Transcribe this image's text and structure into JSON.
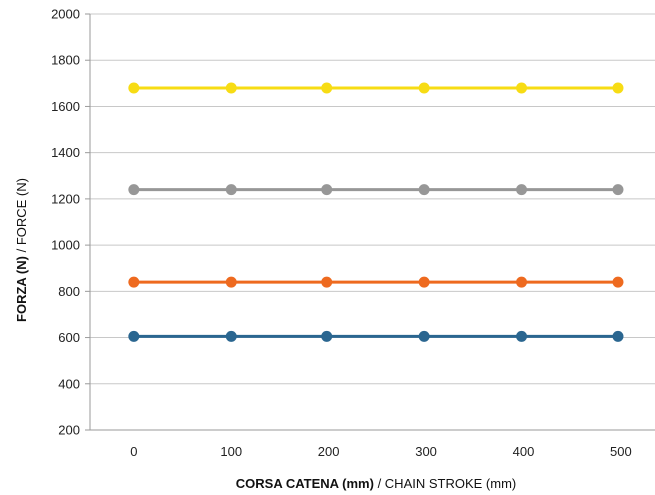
{
  "chart_data": {
    "type": "line",
    "xlabel_bold": "CORSA CATENA (mm)",
    "xlabel_rest": " / CHAIN STROKE (mm)",
    "ylabel_bold": "FORZA (N)",
    "ylabel_rest": "  /  FORCE (N)",
    "x_ticks": [
      0,
      100,
      200,
      300,
      400,
      500
    ],
    "y_ticks": [
      200,
      400,
      600,
      800,
      1000,
      1200,
      1400,
      1600,
      1800,
      2000
    ],
    "xlim": [
      -45,
      535
    ],
    "ylim": [
      200,
      2000
    ],
    "grid": true,
    "x": [
      0,
      100,
      198,
      298,
      398,
      497
    ],
    "series": [
      {
        "color": "#f7dc14",
        "values": [
          1680,
          1680,
          1680,
          1680,
          1680,
          1680
        ]
      },
      {
        "color": "#979797",
        "values": [
          1240,
          1240,
          1240,
          1240,
          1240,
          1240
        ]
      },
      {
        "color": "#ee6a1f",
        "values": [
          840,
          840,
          840,
          840,
          840,
          840
        ]
      },
      {
        "color": "#2a6690",
        "values": [
          605,
          605,
          605,
          605,
          605,
          605
        ]
      }
    ]
  }
}
